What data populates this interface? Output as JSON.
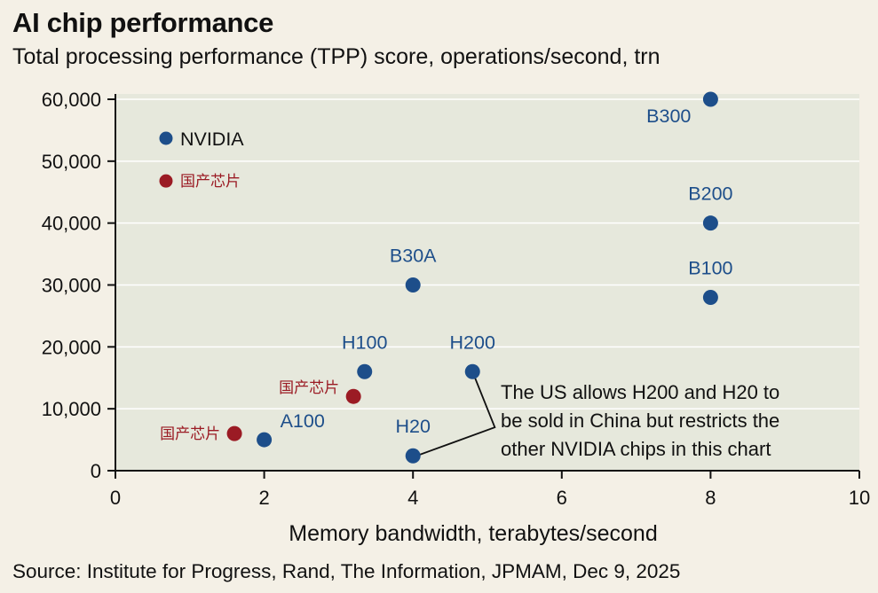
{
  "title": "AI chip performance",
  "subtitle": "Total processing performance (TPP) score, operations/second, trn",
  "source": "Source: Institute for Progress, Rand, The Information, JPMAM, Dec 9, 2025",
  "colors": {
    "nvidia": "#1d4e8a",
    "china": "#9b1b24",
    "plot_bg": "#e6e8dc",
    "grid": "#ffffff"
  },
  "chart_data": {
    "type": "scatter",
    "title": "AI chip performance",
    "subtitle": "Total processing performance (TPP) score, operations/second, trn",
    "xlabel": "Memory bandwidth, terabytes/second",
    "ylabel": "",
    "xlim": [
      0,
      10
    ],
    "ylim": [
      0,
      60000
    ],
    "xticks": [
      0,
      2,
      4,
      6,
      8,
      10
    ],
    "yticks": [
      0,
      10000,
      20000,
      30000,
      40000,
      50000,
      60000
    ],
    "xtick_labels": [
      "0",
      "2",
      "4",
      "6",
      "8",
      "10"
    ],
    "ytick_labels": [
      "0",
      "10,000",
      "20,000",
      "30,000",
      "40,000",
      "50,000",
      "60,000"
    ],
    "grid": "horizontal",
    "legend": {
      "placement": "top-left",
      "entries": [
        {
          "name": "NVIDIA",
          "series": "nvidia"
        },
        {
          "name": "国产芯片",
          "series": "china"
        }
      ]
    },
    "series": [
      {
        "name": "NVIDIA",
        "key": "nvidia",
        "points": [
          {
            "label": "A100",
            "x": 2.0,
            "y": 5000,
            "label_pos": "upper-right"
          },
          {
            "label": "H100",
            "x": 3.35,
            "y": 16000,
            "label_pos": "above"
          },
          {
            "label": "H200",
            "x": 4.8,
            "y": 16000,
            "label_pos": "above"
          },
          {
            "label": "H20",
            "x": 4.0,
            "y": 2400,
            "label_pos": "above"
          },
          {
            "label": "B30A",
            "x": 4.0,
            "y": 30000,
            "label_pos": "above"
          },
          {
            "label": "B100",
            "x": 8.0,
            "y": 28000,
            "label_pos": "above"
          },
          {
            "label": "B200",
            "x": 8.0,
            "y": 40000,
            "label_pos": "above"
          },
          {
            "label": "B300",
            "x": 8.0,
            "y": 60000,
            "label_pos": "lower-left"
          }
        ]
      },
      {
        "name": "国产芯片",
        "key": "china",
        "points": [
          {
            "label": "国产芯片",
            "x": 1.6,
            "y": 6000,
            "label_pos": "left"
          },
          {
            "label": "国产芯片",
            "x": 3.2,
            "y": 12000,
            "label_pos": "upper-left"
          }
        ]
      }
    ],
    "annotation": {
      "lines": [
        "The US allows H200 and H20 to",
        "be sold in China but restricts the",
        "other NVIDIA chips in this chart"
      ],
      "points_to": [
        "H200",
        "H20"
      ]
    }
  }
}
